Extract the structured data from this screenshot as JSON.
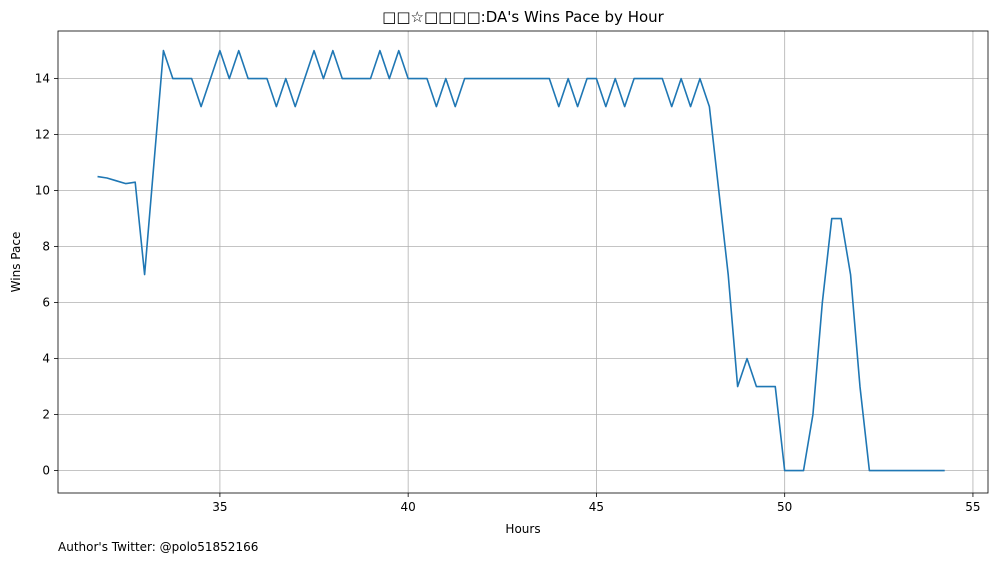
{
  "chart_data": {
    "type": "line",
    "title": "□□☆□□□□:DA's Wins Pace by Hour",
    "xlabel": "Hours",
    "ylabel": "Wins Pace",
    "xlim": [
      30.7,
      55.4
    ],
    "ylim": [
      -0.8,
      15.7
    ],
    "xticks": [
      35,
      40,
      45,
      50,
      55
    ],
    "yticks": [
      0,
      2,
      4,
      6,
      8,
      10,
      12,
      14
    ],
    "grid": true,
    "series": [
      {
        "color": "#1f77b4",
        "x": [
          31.75,
          32.0,
          32.25,
          32.5,
          32.75,
          33.0,
          33.25,
          33.5,
          33.75,
          34.0,
          34.25,
          34.5,
          34.75,
          35.0,
          35.25,
          35.5,
          35.75,
          36.0,
          36.25,
          36.5,
          36.75,
          37.0,
          37.25,
          37.5,
          37.75,
          38.0,
          38.25,
          38.5,
          38.75,
          39.0,
          39.25,
          39.5,
          39.75,
          40.0,
          40.25,
          40.5,
          40.75,
          41.0,
          41.25,
          41.5,
          41.75,
          42.0,
          42.25,
          42.5,
          42.75,
          43.0,
          43.25,
          43.5,
          43.75,
          44.0,
          44.25,
          44.5,
          44.75,
          45.0,
          45.25,
          45.5,
          45.75,
          46.0,
          46.25,
          46.5,
          46.75,
          47.0,
          47.25,
          47.5,
          47.75,
          48.0,
          48.25,
          48.5,
          48.75,
          49.0,
          49.25,
          49.5,
          49.75,
          50.0,
          50.25,
          50.5,
          50.75,
          51.0,
          51.25,
          51.5,
          51.75,
          52.0,
          52.25,
          52.5,
          52.75,
          53.0,
          53.25,
          53.5,
          53.75,
          54.0,
          54.25
        ],
        "y": [
          10.5,
          10.45,
          10.35,
          10.25,
          10.3,
          7.0,
          11.0,
          15.0,
          14.0,
          14.0,
          14.0,
          13.0,
          14.0,
          15.0,
          14.0,
          15.0,
          14.0,
          14.0,
          14.0,
          13.0,
          14.0,
          13.0,
          14.0,
          15.0,
          14.0,
          15.0,
          14.0,
          14.0,
          14.0,
          14.0,
          15.0,
          14.0,
          15.0,
          14.0,
          14.0,
          14.0,
          13.0,
          14.0,
          13.0,
          14.0,
          14.0,
          14.0,
          14.0,
          14.0,
          14.0,
          14.0,
          14.0,
          14.0,
          14.0,
          13.0,
          14.0,
          13.0,
          14.0,
          14.0,
          13.0,
          14.0,
          13.0,
          14.0,
          14.0,
          14.0,
          14.0,
          13.0,
          14.0,
          13.0,
          14.0,
          13.0,
          10.0,
          7.0,
          3.0,
          4.0,
          3.0,
          3.0,
          3.0,
          0.0,
          0.0,
          0.0,
          2.0,
          6.0,
          9.0,
          9.0,
          7.0,
          3.0,
          0.0,
          0.0,
          0.0,
          0.0,
          0.0,
          0.0,
          0.0,
          0.0,
          0.0
        ]
      }
    ]
  },
  "footer_text": "Author's Twitter: @polo51852166"
}
